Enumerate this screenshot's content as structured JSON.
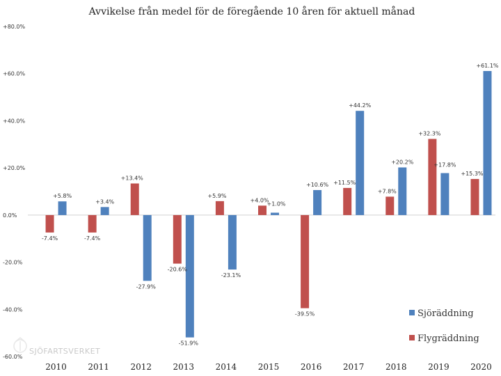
{
  "chart_data": {
    "type": "bar",
    "title": "Avvikelse från medel för de föregående 10 åren för aktuell månad",
    "categories": [
      "2010",
      "2011",
      "2012",
      "2013",
      "2014",
      "2015",
      "2016",
      "2017",
      "2018",
      "2019",
      "2020"
    ],
    "ylim": [
      -60,
      80
    ],
    "yticks": [
      80,
      60,
      40,
      20,
      0,
      -20,
      -40,
      -60
    ],
    "ytick_labels": [
      "+80.0%",
      "+60.0%",
      "+40.0%",
      "+20.0%",
      "0.0%",
      "-20.0%",
      "-40.0%",
      "-60.0%"
    ],
    "series": [
      {
        "name": "Flygräddning",
        "color": "#c0504d",
        "values": [
          -7.4,
          -7.4,
          13.4,
          -20.6,
          5.9,
          4.0,
          -39.5,
          11.5,
          7.8,
          32.3,
          15.3
        ],
        "labels": [
          "-7.4%",
          "-7.4%",
          "+13.4%",
          "-20.6%",
          "+5.9%",
          "+4.0%",
          "-39.5%",
          "+11.5%",
          "+7.8%",
          "+32.3%",
          "+15.3%"
        ]
      },
      {
        "name": "Sjöräddning",
        "color": "#4f81bd",
        "values": [
          5.8,
          3.4,
          -27.9,
          -51.9,
          -23.1,
          1.0,
          10.6,
          44.2,
          20.2,
          17.8,
          61.1
        ],
        "labels": [
          "+5.8%",
          "+3.4%",
          "-27.9%",
          "-51.9%",
          "-23.1%",
          "+1.0%",
          "+10.6%",
          "+44.2%",
          "+20.2%",
          "+17.8%",
          "+61.1%"
        ]
      }
    ],
    "legend": {
      "position": "right",
      "items": [
        {
          "name": "Sjöräddning",
          "color": "#4f81bd"
        },
        {
          "name": "Flygräddning",
          "color": "#c0504d"
        }
      ]
    },
    "grid": false
  },
  "logo": {
    "text": "SJÖFARTSVERKET"
  }
}
